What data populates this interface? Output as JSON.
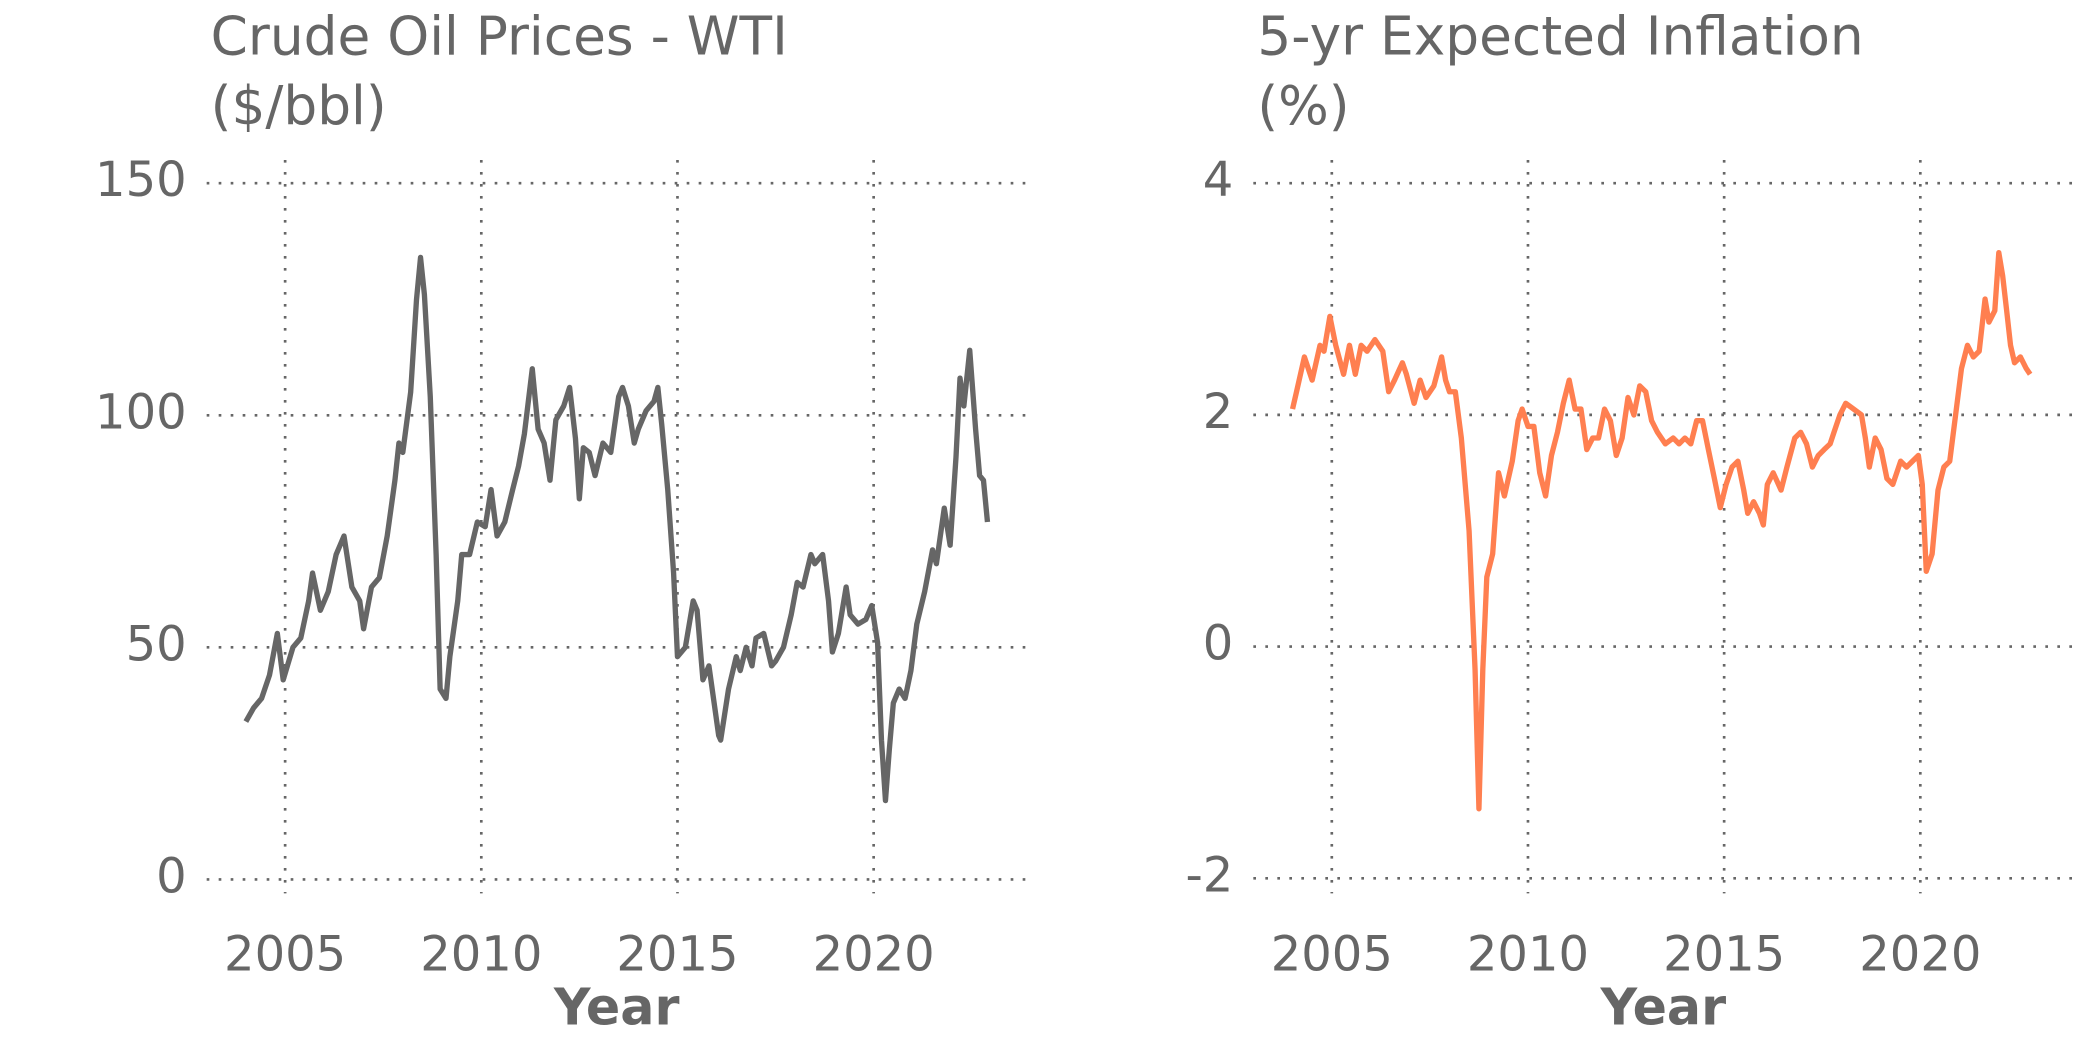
{
  "chart_data": [
    {
      "type": "line",
      "title": "Crude Oil Prices - WTI",
      "subtitle": "($/bbl)",
      "xlabel": "Year",
      "color": "#666666",
      "xlim": [
        2003,
        2023.9
      ],
      "ylim": [
        -3,
        155
      ],
      "xticks": [
        2005,
        2010,
        2015,
        2020
      ],
      "yticks": [
        0,
        50,
        100,
        150
      ],
      "grid": true,
      "x": [
        2004.0,
        2004.2,
        2004.4,
        2004.6,
        2004.8,
        2004.95,
        2005.2,
        2005.4,
        2005.6,
        2005.7,
        2005.9,
        2006.1,
        2006.3,
        2006.5,
        2006.7,
        2006.9,
        2007.0,
        2007.2,
        2007.4,
        2007.6,
        2007.8,
        2007.9,
        2008.0,
        2008.2,
        2008.35,
        2008.45,
        2008.55,
        2008.7,
        2008.85,
        2008.95,
        2009.1,
        2009.2,
        2009.4,
        2009.5,
        2009.7,
        2009.9,
        2010.1,
        2010.25,
        2010.4,
        2010.6,
        2010.8,
        2010.95,
        2011.1,
        2011.3,
        2011.45,
        2011.6,
        2011.75,
        2011.9,
        2012.1,
        2012.25,
        2012.4,
        2012.5,
        2012.6,
        2012.75,
        2012.9,
        2013.1,
        2013.3,
        2013.5,
        2013.6,
        2013.75,
        2013.9,
        2014.0,
        2014.2,
        2014.4,
        2014.5,
        2014.6,
        2014.75,
        2014.9,
        2015.0,
        2015.2,
        2015.4,
        2015.5,
        2015.65,
        2015.8,
        2015.95,
        2016.05,
        2016.1,
        2016.3,
        2016.5,
        2016.6,
        2016.75,
        2016.9,
        2017.0,
        2017.2,
        2017.4,
        2017.5,
        2017.7,
        2017.9,
        2018.05,
        2018.2,
        2018.4,
        2018.5,
        2018.7,
        2018.85,
        2018.95,
        2019.1,
        2019.3,
        2019.4,
        2019.6,
        2019.8,
        2019.95,
        2020.1,
        2020.2,
        2020.3,
        2020.4,
        2020.5,
        2020.65,
        2020.8,
        2020.95,
        2021.1,
        2021.3,
        2021.5,
        2021.6,
        2021.8,
        2021.95,
        2022.1,
        2022.2,
        2022.3,
        2022.45,
        2022.6,
        2022.7,
        2022.8,
        2022.9
      ],
      "values": [
        34,
        37,
        39,
        44,
        53,
        43,
        50,
        52,
        60,
        66,
        58,
        62,
        70,
        74,
        63,
        60,
        54,
        63,
        65,
        74,
        86,
        94,
        92,
        105,
        125,
        134,
        126,
        104,
        70,
        41,
        39,
        48,
        60,
        70,
        70,
        77,
        76,
        84,
        74,
        77,
        84,
        89,
        96,
        110,
        97,
        94,
        86,
        99,
        102,
        106,
        95,
        82,
        93,
        92,
        87,
        94,
        92,
        104,
        106,
        102,
        94,
        97,
        101,
        103,
        106,
        98,
        84,
        66,
        48,
        50,
        60,
        58,
        43,
        46,
        37,
        31,
        30,
        41,
        48,
        45,
        50,
        46,
        52,
        53,
        46,
        47,
        50,
        57,
        64,
        63,
        70,
        68,
        70,
        60,
        49,
        53,
        63,
        57,
        55,
        56,
        59,
        51,
        30,
        17,
        28,
        38,
        41,
        39,
        45,
        55,
        62,
        71,
        68,
        80,
        72,
        91,
        108,
        102,
        114,
        97,
        87,
        86,
        77
      ]
    },
    {
      "type": "line",
      "title": "5-yr Expected Inflation",
      "subtitle": "(%)",
      "xlabel": "Year",
      "color": "#ff7f50",
      "xlim": [
        2003,
        2023.9
      ],
      "ylim": [
        -2.13,
        4.2
      ],
      "xticks": [
        2005,
        2010,
        2015,
        2020
      ],
      "yticks": [
        -2,
        0,
        2,
        4
      ],
      "grid": true,
      "x": [
        2004.0,
        2004.1,
        2004.3,
        2004.5,
        2004.7,
        2004.8,
        2004.95,
        2005.1,
        2005.3,
        2005.45,
        2005.6,
        2005.75,
        2005.9,
        2006.1,
        2006.3,
        2006.45,
        2006.6,
        2006.8,
        2006.9,
        2007.1,
        2007.25,
        2007.4,
        2007.6,
        2007.8,
        2007.9,
        2008.0,
        2008.15,
        2008.3,
        2008.5,
        2008.65,
        2008.75,
        2008.85,
        2008.95,
        2009.1,
        2009.25,
        2009.4,
        2009.6,
        2009.75,
        2009.85,
        2010.0,
        2010.15,
        2010.3,
        2010.45,
        2010.6,
        2010.75,
        2010.9,
        2011.05,
        2011.2,
        2011.35,
        2011.5,
        2011.65,
        2011.8,
        2011.95,
        2012.1,
        2012.25,
        2012.4,
        2012.55,
        2012.7,
        2012.85,
        2013.0,
        2013.15,
        2013.3,
        2013.5,
        2013.7,
        2013.85,
        2014.0,
        2014.15,
        2014.3,
        2014.45,
        2014.6,
        2014.75,
        2014.9,
        2015.05,
        2015.2,
        2015.35,
        2015.5,
        2015.6,
        2015.75,
        2015.9,
        2016.0,
        2016.1,
        2016.25,
        2016.45,
        2016.6,
        2016.8,
        2016.95,
        2017.1,
        2017.25,
        2017.4,
        2017.55,
        2017.7,
        2017.8,
        2017.95,
        2018.1,
        2018.3,
        2018.5,
        2018.6,
        2018.7,
        2018.85,
        2019.0,
        2019.15,
        2019.3,
        2019.5,
        2019.65,
        2019.8,
        2019.95,
        2020.05,
        2020.15,
        2020.3,
        2020.45,
        2020.6,
        2020.75,
        2020.9,
        2021.05,
        2021.2,
        2021.35,
        2021.5,
        2021.65,
        2021.75,
        2021.9,
        2022.0,
        2022.1,
        2022.2,
        2022.3,
        2022.4,
        2022.55,
        2022.7,
        2022.8
      ],
      "values": [
        2.05,
        2.2,
        2.5,
        2.3,
        2.6,
        2.55,
        2.85,
        2.6,
        2.35,
        2.6,
        2.35,
        2.6,
        2.55,
        2.65,
        2.55,
        2.2,
        2.3,
        2.45,
        2.35,
        2.1,
        2.3,
        2.15,
        2.25,
        2.5,
        2.3,
        2.2,
        2.2,
        1.8,
        1.0,
        -0.2,
        -1.4,
        -0.2,
        0.6,
        0.8,
        1.5,
        1.3,
        1.6,
        1.95,
        2.05,
        1.9,
        1.9,
        1.5,
        1.3,
        1.65,
        1.85,
        2.1,
        2.3,
        2.05,
        2.05,
        1.7,
        1.8,
        1.8,
        2.05,
        1.95,
        1.65,
        1.8,
        2.15,
        2.0,
        2.25,
        2.2,
        1.95,
        1.85,
        1.75,
        1.8,
        1.75,
        1.8,
        1.75,
        1.95,
        1.95,
        1.7,
        1.45,
        1.2,
        1.4,
        1.55,
        1.6,
        1.35,
        1.15,
        1.25,
        1.15,
        1.05,
        1.4,
        1.5,
        1.35,
        1.55,
        1.8,
        1.85,
        1.75,
        1.55,
        1.65,
        1.7,
        1.75,
        1.85,
        2.0,
        2.1,
        2.05,
        2.0,
        1.8,
        1.55,
        1.8,
        1.7,
        1.45,
        1.4,
        1.6,
        1.55,
        1.6,
        1.65,
        1.4,
        0.65,
        0.8,
        1.35,
        1.55,
        1.6,
        2.0,
        2.4,
        2.6,
        2.5,
        2.55,
        3.0,
        2.8,
        2.9,
        3.4,
        3.2,
        2.9,
        2.6,
        2.45,
        2.5,
        2.4,
        2.35
      ]
    }
  ]
}
